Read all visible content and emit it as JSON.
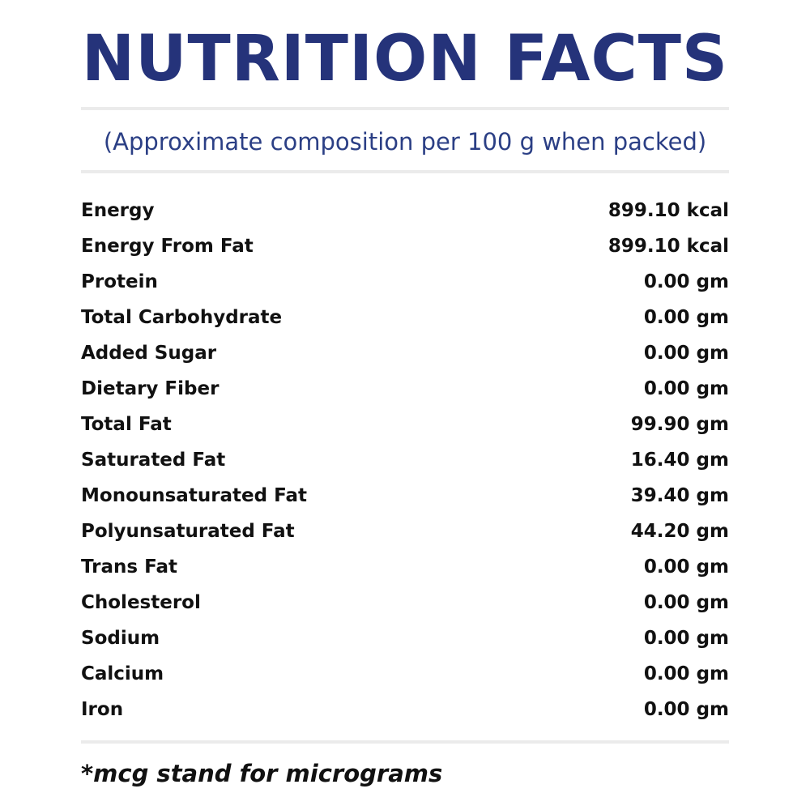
{
  "header": {
    "title": "NUTRITION FACTS",
    "subtitle": "(Approximate composition per 100 g when packed)"
  },
  "table": {
    "rows": [
      [
        "Energy",
        "899.10 kcal"
      ],
      [
        "Energy From Fat",
        "899.10 kcal"
      ],
      [
        "Protein",
        "0.00 gm"
      ],
      [
        "Total Carbohydrate",
        "0.00 gm"
      ],
      [
        "Added Sugar",
        "0.00 gm"
      ],
      [
        "Dietary Fiber",
        "0.00 gm"
      ],
      [
        "Total Fat",
        "99.90 gm"
      ],
      [
        "Saturated Fat",
        "16.40 gm"
      ],
      [
        "Monounsaturated Fat",
        "39.40 gm"
      ],
      [
        "Polyunsaturated Fat",
        "44.20 gm"
      ],
      [
        "Trans Fat",
        "0.00 gm"
      ],
      [
        "Cholesterol",
        "0.00 gm"
      ],
      [
        "Sodium",
        "0.00 gm"
      ],
      [
        "Calcium",
        "0.00 gm"
      ],
      [
        "Iron",
        "0.00 gm"
      ]
    ]
  },
  "footer": {
    "note": "*mcg stand for micrograms"
  }
}
